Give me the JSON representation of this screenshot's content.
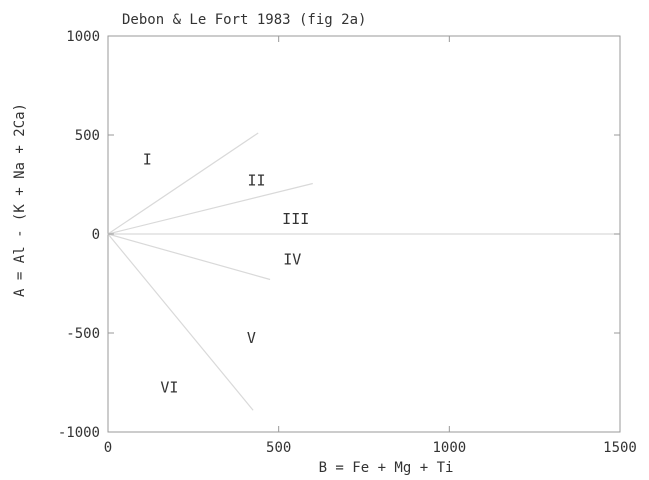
{
  "chart_data": {
    "type": "line",
    "title": "Debon & Le Fort 1983 (fig 2a)",
    "xlabel": "B = Fe + Mg + Ti",
    "ylabel": "A = Al - (K + Na + 2Ca)",
    "xlim": [
      0,
      1500
    ],
    "ylim": [
      -1000,
      1000
    ],
    "xticks": [
      0,
      500,
      1000,
      1500
    ],
    "yticks": [
      -1000,
      -500,
      0,
      500,
      1000
    ],
    "grid": false,
    "lines": [
      {
        "x": [
          0,
          1500
        ],
        "y": [
          0,
          0
        ]
      },
      {
        "x": [
          0,
          440
        ],
        "y": [
          0,
          510
        ]
      },
      {
        "x": [
          0,
          600
        ],
        "y": [
          0,
          255
        ]
      },
      {
        "x": [
          0,
          475
        ],
        "y": [
          0,
          -230
        ]
      },
      {
        "x": [
          0,
          425
        ],
        "y": [
          0,
          -890
        ]
      }
    ],
    "annotations": [
      {
        "text": "I",
        "x": 115,
        "y": 350
      },
      {
        "text": "II",
        "x": 435,
        "y": 245
      },
      {
        "text": "III",
        "x": 550,
        "y": 50
      },
      {
        "text": "IV",
        "x": 540,
        "y": -155
      },
      {
        "text": "V",
        "x": 420,
        "y": -550
      },
      {
        "text": "VI",
        "x": 180,
        "y": -800
      }
    ],
    "colors": {
      "axis": "#999999",
      "line": "#d9d9d9",
      "text": "#333333"
    }
  }
}
